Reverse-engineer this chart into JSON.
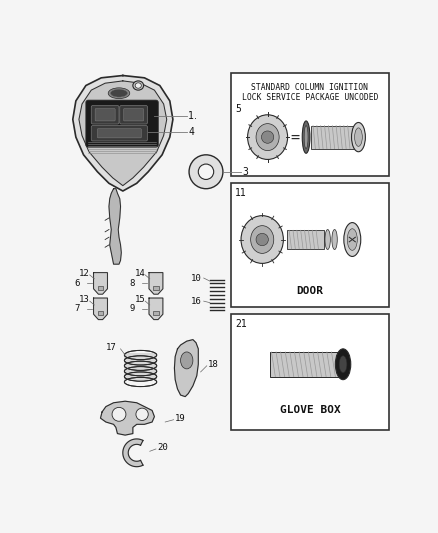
{
  "bg_color": "#f5f5f5",
  "line_color": "#2a2a2a",
  "box1_text1": "STANDARD COLUMN IGNITION",
  "box1_text2": "LOCK SERVICE PACKAGE UNCODED",
  "box2_label": "DOOR",
  "box3_label": "GLOVE BOX"
}
